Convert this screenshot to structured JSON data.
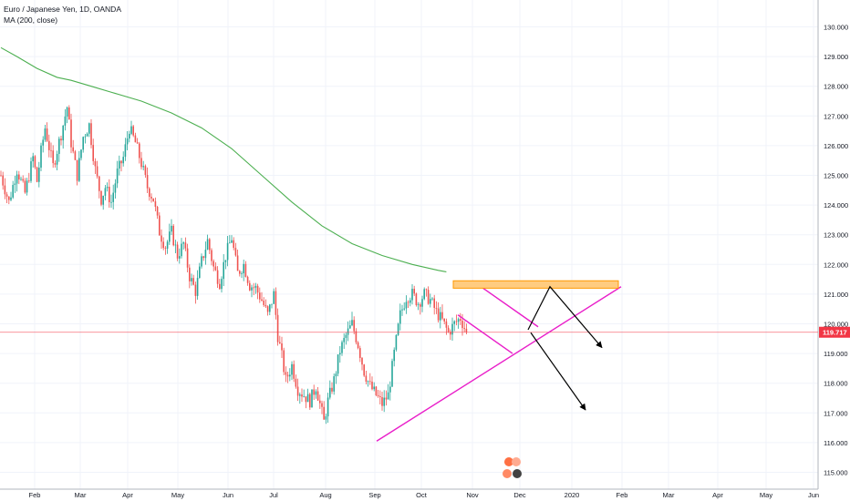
{
  "legend": {
    "symbol": "Euro / Japanese Yen, 1D, OANDA",
    "indicator": "MA (200, close)"
  },
  "colors": {
    "up": "#26a69a",
    "down": "#ef5350",
    "ma": "#4caf50",
    "price_line": "#f23645",
    "pattern": "#e91ec9",
    "resistance_fill": "#ffcc80",
    "resistance_stroke": "#ff9800",
    "arrow": "#000000",
    "grid": "#f0f3fa",
    "axis_text": "#131722"
  },
  "chart_data": {
    "type": "candlestick",
    "ylim": [
      114.6,
      130.6
    ],
    "y_ticks": [
      115.0,
      116.0,
      117.0,
      118.0,
      119.0,
      120.0,
      121.0,
      122.0,
      123.0,
      124.0,
      125.0,
      126.0,
      127.0,
      128.0,
      129.0,
      130.0
    ],
    "x_tick_labels": [
      "Feb",
      "Mar",
      "Apr",
      "May",
      "Jun",
      "Jul",
      "Aug",
      "Sep",
      "Oct",
      "Nov",
      "Dec",
      "2020",
      "Feb",
      "Mar",
      "Apr",
      "May",
      "Jun"
    ],
    "last_price": 119.717,
    "last_price_label": "119.717",
    "price_path": [
      [
        0,
        125.0
      ],
      [
        4,
        124.1
      ],
      [
        8,
        125.2
      ],
      [
        12,
        124.4
      ],
      [
        16,
        125.6
      ],
      [
        18,
        124.8
      ],
      [
        20,
        125.8
      ],
      [
        22,
        126.6
      ],
      [
        26,
        125.3
      ],
      [
        30,
        126.4
      ],
      [
        33,
        127.3
      ],
      [
        35,
        126.1
      ],
      [
        38,
        125.0
      ],
      [
        41,
        126.3
      ],
      [
        44,
        126.7
      ],
      [
        47,
        125.2
      ],
      [
        50,
        124.2
      ],
      [
        52,
        124.6
      ],
      [
        55,
        124.1
      ],
      [
        58,
        125.1
      ],
      [
        61,
        125.6
      ],
      [
        64,
        126.6
      ],
      [
        67,
        126.1
      ],
      [
        70,
        125.4
      ],
      [
        73,
        124.6
      ],
      [
        76,
        124.2
      ],
      [
        79,
        123.1
      ],
      [
        82,
        122.6
      ],
      [
        85,
        123.1
      ],
      [
        88,
        122.3
      ],
      [
        91,
        122.7
      ],
      [
        94,
        121.6
      ],
      [
        97,
        121.1
      ],
      [
        100,
        122.1
      ],
      [
        103,
        122.8
      ],
      [
        106,
        121.9
      ],
      [
        109,
        121.4
      ],
      [
        112,
        122.3
      ],
      [
        115,
        122.9
      ],
      [
        118,
        121.7
      ],
      [
        121,
        122.0
      ],
      [
        124,
        121.3
      ],
      [
        127,
        121.2
      ],
      [
        130,
        120.8
      ],
      [
        133,
        120.3
      ],
      [
        136,
        121.0
      ],
      [
        138,
        119.6
      ],
      [
        140,
        118.9
      ],
      [
        142,
        118.1
      ],
      [
        145,
        118.6
      ],
      [
        148,
        117.8
      ],
      [
        151,
        117.6
      ],
      [
        154,
        117.4
      ],
      [
        157,
        117.9
      ],
      [
        159,
        117.3
      ],
      [
        161,
        116.7
      ],
      [
        163,
        117.4
      ],
      [
        166,
        118.1
      ],
      [
        169,
        119.1
      ],
      [
        172,
        119.6
      ],
      [
        175,
        120.0
      ],
      [
        178,
        119.3
      ],
      [
        181,
        118.4
      ],
      [
        184,
        117.9
      ],
      [
        187,
        117.6
      ],
      [
        190,
        117.3
      ],
      [
        193,
        117.6
      ],
      [
        196,
        119.0
      ],
      [
        199,
        120.3
      ],
      [
        202,
        120.9
      ],
      [
        205,
        121.0
      ],
      [
        208,
        120.7
      ],
      [
        211,
        121.0
      ],
      [
        214,
        120.8
      ],
      [
        217,
        120.4
      ],
      [
        220,
        120.1
      ],
      [
        223,
        119.7
      ],
      [
        226,
        120.0
      ],
      [
        229,
        120.2
      ],
      [
        232,
        119.717
      ]
    ],
    "ma_path": [
      [
        0,
        129.3
      ],
      [
        8,
        129.0
      ],
      [
        18,
        128.6
      ],
      [
        28,
        128.3
      ],
      [
        35,
        128.2
      ],
      [
        45,
        128.0
      ],
      [
        55,
        127.8
      ],
      [
        70,
        127.5
      ],
      [
        85,
        127.1
      ],
      [
        100,
        126.6
      ],
      [
        115,
        125.9
      ],
      [
        130,
        125.0
      ],
      [
        145,
        124.1
      ],
      [
        160,
        123.3
      ],
      [
        175,
        122.7
      ],
      [
        190,
        122.3
      ],
      [
        205,
        122.0
      ],
      [
        218,
        121.8
      ],
      [
        222,
        121.75
      ]
    ],
    "trading_days": 233,
    "drawings": {
      "rising_support": {
        "from": [
          116.0,
          "Sep"
        ],
        "to": [
          121.2,
          "Feb 2020"
        ]
      },
      "falling_wedge_top": {
        "from": [
          121.5,
          "Oct end"
        ],
        "to": [
          119.9,
          "Nov end"
        ]
      },
      "falling_wedge_bottom": {
        "from": [
          120.3,
          "Oct end"
        ],
        "to": [
          119.0,
          "Nov end"
        ]
      },
      "resistance_zone": {
        "range": [
          121.2,
          121.45
        ]
      }
    }
  }
}
